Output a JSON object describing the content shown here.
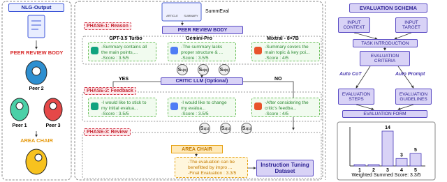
{
  "left_panel": {
    "title": "NLG-Output",
    "peer_review_body": "PEER REVIEW BODY",
    "peers": [
      "Peer 2",
      "Peer 1",
      "Peer 3"
    ],
    "area_chair": "AREA CHAIR"
  },
  "pipeline": {
    "inputs": [
      "ARTICLE",
      "SUMMARY"
    ],
    "dataset": "SummEval",
    "phase1": {
      "label": "PHASE-1: Reason",
      "body": "PEER REVIEW BODY",
      "models": [
        "GPT-3.5 Turbo",
        "Gemini-Pro",
        "Mixtral - 8×7B"
      ],
      "reviews": [
        {
          "text": "-Summary contains all the main points,...",
          "score": "-Score : 3.5/5"
        },
        {
          "text": "-The summary lacks proper structure & ...",
          "score": "-Score : 3.5/5"
        },
        {
          "text": "-Summary covers the main topic & key poi...",
          "score": "-Score : 4/5"
        }
      ]
    },
    "badges1": [
      {
        "base": "S",
        "sub": "1",
        "sup": "(0)"
      },
      {
        "base": "S",
        "sub": "2",
        "sup": "(0)"
      },
      {
        "base": "S",
        "sub": "3",
        "sup": "(0)"
      }
    ],
    "critic": "CRITIC LLM (Optional)",
    "yes": "YES",
    "no": "NO",
    "phase2": {
      "label": "PHASE-2: Feedback",
      "reviews": [
        {
          "text": "-I would like to stick to my initial evalua...",
          "score": "-Score : 3.5/5"
        },
        {
          "text": "-I would like to change my evalua...",
          "score": "-Score : 3.5/5"
        },
        {
          "text": "-After considering the critic's feedba...",
          "score": "-Score : 4/5"
        }
      ]
    },
    "badges2": [
      {
        "base": "S",
        "sub": "1",
        "sup": "(1)"
      },
      {
        "base": "S",
        "sub": "2",
        "sup": "(1)"
      },
      {
        "base": "S",
        "sub": "3",
        "sup": "(1)"
      }
    ],
    "phase3": {
      "label": "PHASE-3: Review",
      "area_chair": "AREA CHAIR",
      "review": {
        "text": "-The evaluation can be benefitted by impro ...",
        "final": "-Final Evaluation : 3.3/5"
      }
    },
    "output": "Instruction Tuning Dataset"
  },
  "schema": {
    "title": "EVALUATION SCHEMA",
    "input_context": "INPUT CONTEXT",
    "input_target": "INPUT TARGET",
    "task_intro": "TASK INTRODUCTION",
    "criteria": "EVALUATION CRITERIA",
    "auto_cot": "Auto CoT",
    "auto_prompt": "Auto Prompt",
    "steps": "EVALUATION STEPS",
    "guidelines": "EVALUATION GUIDELINES",
    "form": "EVALUATION FORM"
  },
  "histogram": {
    "bins": [
      "1",
      "2",
      "3",
      "4",
      "5"
    ],
    "counts": [
      0,
      0,
      14,
      3,
      5
    ],
    "caption": "Weighted Summed Score: 3.3/5"
  }
}
